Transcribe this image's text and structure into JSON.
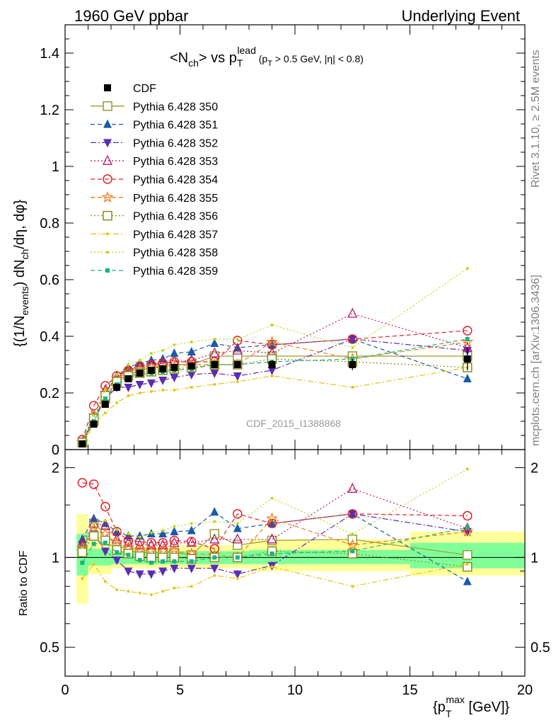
{
  "header": {
    "left": "1960 GeV ppbar",
    "right": "Underlying Event"
  },
  "side_labels": {
    "rivet": "Rivet 3.1.10, ≥ 2.5M events",
    "mcplots": "mcplots.cern.ch [arXiv:1306.3436]"
  },
  "watermark": "CDF_2015_I1388868",
  "chart_data": [
    {
      "type": "line",
      "panel": "main",
      "title": "<N_ch> vs p_T^lead (p_T > 0.5 GeV, |η| < 0.8)",
      "ylabel": "{(1/N_events) dN_ch/dη, dφ}",
      "xlim": [
        0,
        20
      ],
      "ylim": [
        0,
        1.5
      ],
      "yticks": [
        0,
        0.2,
        0.4,
        0.6,
        0.8,
        1,
        1.2,
        1.4
      ],
      "ytick_labels": [
        "0",
        "0.2",
        "0.4",
        "0.6",
        "0.8",
        "1",
        "1.2",
        "1.4"
      ],
      "x": [
        0.75,
        1.25,
        1.75,
        2.25,
        2.75,
        3.25,
        3.75,
        4.25,
        4.75,
        5.5,
        6.5,
        7.5,
        9.0,
        12.5,
        17.5
      ],
      "data": {
        "name": "CDF",
        "values": [
          0.02,
          0.09,
          0.16,
          0.22,
          0.25,
          0.27,
          0.28,
          0.285,
          0.29,
          0.295,
          0.3,
          0.3,
          0.3,
          0.3,
          0.32
        ],
        "errors": [
          0.005,
          0.01,
          0.01,
          0.01,
          0.01,
          0.01,
          0.01,
          0.01,
          0.01,
          0.01,
          0.01,
          0.01,
          0.015,
          0.02,
          0.04
        ]
      },
      "series": [
        {
          "name": "Pythia 6.428 350",
          "color": "#999933",
          "marker": "open-square",
          "dash": "solid",
          "values": [
            0.025,
            0.1,
            0.18,
            0.24,
            0.265,
            0.28,
            0.29,
            0.295,
            0.3,
            0.3,
            0.33,
            0.33,
            0.33,
            0.33,
            0.33
          ]
        },
        {
          "name": "Pythia 6.428 351",
          "color": "#1a5aa8",
          "marker": "filled-triangle-up",
          "dash": "dashed",
          "values": [
            0.03,
            0.12,
            0.2,
            0.26,
            0.29,
            0.305,
            0.315,
            0.32,
            0.34,
            0.345,
            0.375,
            0.36,
            0.37,
            0.39,
            0.25
          ]
        },
        {
          "name": "Pythia 6.428 352",
          "color": "#5b2db3",
          "marker": "filled-triangle-down",
          "dash": "dashdot",
          "values": [
            0.025,
            0.11,
            0.18,
            0.22,
            0.22,
            0.23,
            0.235,
            0.245,
            0.255,
            0.265,
            0.27,
            0.26,
            0.28,
            0.39,
            0.35
          ]
        },
        {
          "name": "Pythia 6.428 353",
          "color": "#b5176b",
          "marker": "open-triangle-up",
          "dash": "dotted",
          "values": [
            0.025,
            0.12,
            0.21,
            0.255,
            0.28,
            0.29,
            0.3,
            0.305,
            0.31,
            0.315,
            0.34,
            0.35,
            0.34,
            0.48,
            0.36
          ]
        },
        {
          "name": "Pythia 6.428 354",
          "color": "#e21f26",
          "marker": "open-circle",
          "dash": "dashed",
          "values": [
            0.035,
            0.155,
            0.225,
            0.26,
            0.28,
            0.295,
            0.3,
            0.305,
            0.31,
            0.31,
            0.31,
            0.385,
            0.37,
            0.39,
            0.42
          ]
        },
        {
          "name": "Pythia 6.428 355",
          "color": "#f07a1a",
          "marker": "open-star",
          "dash": "dashed",
          "values": [
            0.025,
            0.12,
            0.2,
            0.25,
            0.275,
            0.285,
            0.29,
            0.29,
            0.295,
            0.3,
            0.3,
            0.3,
            0.38,
            0.32,
            0.38
          ]
        },
        {
          "name": "Pythia 6.428 356",
          "color": "#8a8a1a",
          "marker": "open-square",
          "dash": "dotted",
          "values": [
            0.025,
            0.11,
            0.19,
            0.24,
            0.26,
            0.27,
            0.275,
            0.28,
            0.285,
            0.29,
            0.3,
            0.3,
            0.32,
            0.31,
            0.29
          ]
        },
        {
          "name": "Pythia 6.428 357",
          "color": "#e3c51c",
          "marker": "small-dot",
          "dash": "dashdot",
          "values": [
            0.02,
            0.085,
            0.13,
            0.165,
            0.19,
            0.2,
            0.205,
            0.21,
            0.21,
            0.22,
            0.23,
            0.24,
            0.26,
            0.22,
            0.29
          ]
        },
        {
          "name": "Pythia 6.428 358",
          "color": "#b5d91c",
          "marker": "small-dot",
          "dash": "dotted",
          "values": [
            0.025,
            0.12,
            0.21,
            0.265,
            0.3,
            0.315,
            0.34,
            0.35,
            0.37,
            0.38,
            0.39,
            0.39,
            0.44,
            0.36,
            0.64
          ]
        },
        {
          "name": "Pythia 6.428 359",
          "color": "#19b57a",
          "marker": "filled-square-small",
          "dash": "dashed",
          "values": [
            0.02,
            0.1,
            0.18,
            0.23,
            0.255,
            0.265,
            0.27,
            0.275,
            0.28,
            0.285,
            0.3,
            0.3,
            0.31,
            0.32,
            0.39
          ]
        }
      ]
    },
    {
      "type": "line",
      "panel": "ratio",
      "ylabel": "Ratio to CDF",
      "xlabel": "{p_T^max [GeV]}",
      "xlim": [
        0,
        20
      ],
      "ylim": [
        0.4,
        2.3
      ],
      "log_y": true,
      "yticks": [
        0.5,
        1,
        2
      ],
      "ytick_labels": [
        "0.5",
        "1",
        "2"
      ],
      "xticks": [
        0,
        5,
        10,
        15,
        20
      ],
      "xtick_labels": [
        "0",
        "5",
        "10",
        "15",
        "20"
      ],
      "x": [
        0.75,
        1.25,
        1.75,
        2.25,
        2.75,
        3.25,
        3.75,
        4.25,
        4.75,
        5.5,
        6.5,
        7.5,
        9.0,
        12.5,
        17.5
      ],
      "bands": {
        "yellow": [
          {
            "x0": 0.5,
            "x1": 1.0,
            "lo": 0.7,
            "hi": 1.4
          },
          {
            "x0": 1.0,
            "x1": 2.0,
            "lo": 0.88,
            "hi": 1.16
          },
          {
            "x0": 2.0,
            "x1": 5.0,
            "lo": 0.92,
            "hi": 1.09
          },
          {
            "x0": 5.0,
            "x1": 8.0,
            "lo": 0.92,
            "hi": 1.1
          },
          {
            "x0": 8.0,
            "x1": 15.0,
            "lo": 0.9,
            "hi": 1.15
          },
          {
            "x0": 15.0,
            "x1": 20.0,
            "lo": 0.87,
            "hi": 1.22
          }
        ],
        "green": [
          {
            "x0": 0.5,
            "x1": 1.0,
            "lo": 0.87,
            "hi": 1.2
          },
          {
            "x0": 1.0,
            "x1": 2.0,
            "lo": 0.94,
            "hi": 1.07
          },
          {
            "x0": 2.0,
            "x1": 5.0,
            "lo": 0.95,
            "hi": 1.05
          },
          {
            "x0": 5.0,
            "x1": 8.0,
            "lo": 0.95,
            "hi": 1.05
          },
          {
            "x0": 8.0,
            "x1": 15.0,
            "lo": 0.95,
            "hi": 1.06
          },
          {
            "x0": 15.0,
            "x1": 20.0,
            "lo": 0.92,
            "hi": 1.12
          }
        ]
      },
      "series": [
        {
          "name": "Pythia 6.428 350",
          "values": [
            1.05,
            1.3,
            1.2,
            1.1,
            1.06,
            1.04,
            1.04,
            1.04,
            1.04,
            1.02,
            1.2,
            1.1,
            1.14,
            1.15,
            1.02
          ]
        },
        {
          "name": "Pythia 6.428 351",
          "values": [
            1.15,
            1.35,
            1.3,
            1.22,
            1.18,
            1.18,
            1.2,
            1.2,
            1.22,
            1.23,
            1.42,
            1.25,
            1.3,
            1.4,
            0.83
          ]
        },
        {
          "name": "Pythia 6.428 352",
          "values": [
            1.1,
            1.2,
            1.05,
            0.98,
            0.9,
            0.88,
            0.88,
            0.9,
            0.92,
            0.92,
            0.92,
            0.88,
            0.94,
            1.4,
            1.22
          ]
        },
        {
          "name": "Pythia 6.428 353",
          "values": [
            1.12,
            1.3,
            1.28,
            1.15,
            1.12,
            1.1,
            1.1,
            1.1,
            1.12,
            1.12,
            1.15,
            1.15,
            1.15,
            1.7,
            1.25
          ]
        },
        {
          "name": "Pythia 6.428 354",
          "values": [
            1.78,
            1.76,
            1.48,
            1.22,
            1.14,
            1.13,
            1.12,
            1.12,
            1.14,
            1.13,
            1.07,
            1.4,
            1.3,
            1.4,
            1.38
          ]
        },
        {
          "name": "Pythia 6.428 355",
          "values": [
            1.08,
            1.25,
            1.2,
            1.12,
            1.08,
            1.06,
            1.05,
            1.05,
            1.05,
            1.03,
            1.02,
            1.0,
            1.35,
            1.1,
            1.22
          ]
        },
        {
          "name": "Pythia 6.428 356",
          "values": [
            1.04,
            1.18,
            1.14,
            1.06,
            1.03,
            1.01,
            1.0,
            1.0,
            1.0,
            0.99,
            1.0,
            1.0,
            1.05,
            1.03,
            0.93
          ]
        },
        {
          "name": "Pythia 6.428 357",
          "values": [
            0.85,
            0.95,
            0.83,
            0.78,
            0.77,
            0.76,
            0.75,
            0.77,
            0.79,
            0.8,
            0.87,
            0.85,
            0.93,
            0.8,
            0.95
          ]
        },
        {
          "name": "Pythia 6.428 358",
          "values": [
            1.08,
            1.3,
            1.33,
            1.24,
            1.2,
            1.17,
            1.21,
            1.23,
            1.27,
            1.3,
            1.32,
            1.3,
            1.58,
            1.2,
            1.98
          ]
        },
        {
          "name": "Pythia 6.428 359",
          "values": [
            0.96,
            1.11,
            1.12,
            1.04,
            1.02,
            0.98,
            0.96,
            0.97,
            0.97,
            0.97,
            1.0,
            1.0,
            1.03,
            1.05,
            1.26
          ]
        }
      ]
    }
  ]
}
